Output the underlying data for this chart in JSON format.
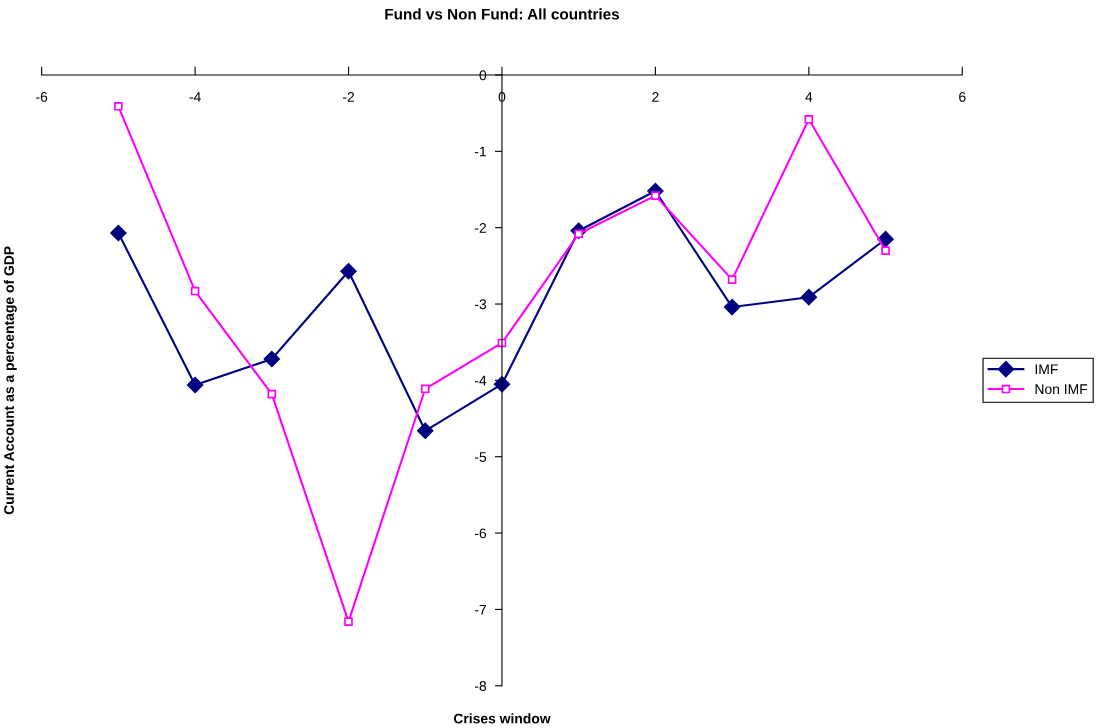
{
  "chart_data": {
    "type": "line",
    "title": "Fund vs Non Fund: All countries",
    "xlabel": "Crises window",
    "ylabel": "Current Account as a percentage of GDP",
    "xlim": [
      -6,
      6
    ],
    "xticks": [
      -6,
      -4,
      -2,
      0,
      2,
      4,
      6
    ],
    "ylim": [
      -8,
      0
    ],
    "yticks": [
      -8,
      -7,
      -6,
      -5,
      -4,
      -3,
      -2,
      -1,
      0
    ],
    "x": [
      -5,
      -4,
      -3,
      -2,
      -1,
      0,
      1,
      2,
      3,
      4,
      5
    ],
    "grid": false,
    "legend": "right",
    "line_style": "solid",
    "series": [
      {
        "name": "IMF",
        "color": "#000080",
        "marker": "diamond",
        "values": [
          -2.07,
          -4.06,
          -3.72,
          -2.57,
          -4.66,
          -4.05,
          -2.04,
          -1.52,
          -3.04,
          -2.91,
          -2.15
        ]
      },
      {
        "name": "Non IMF",
        "color": "#ff00ff",
        "marker": "square",
        "values": [
          -0.41,
          -2.83,
          -4.18,
          -7.16,
          -4.11,
          -3.51,
          -2.08,
          -1.58,
          -2.68,
          -0.58,
          -2.3
        ]
      }
    ]
  }
}
